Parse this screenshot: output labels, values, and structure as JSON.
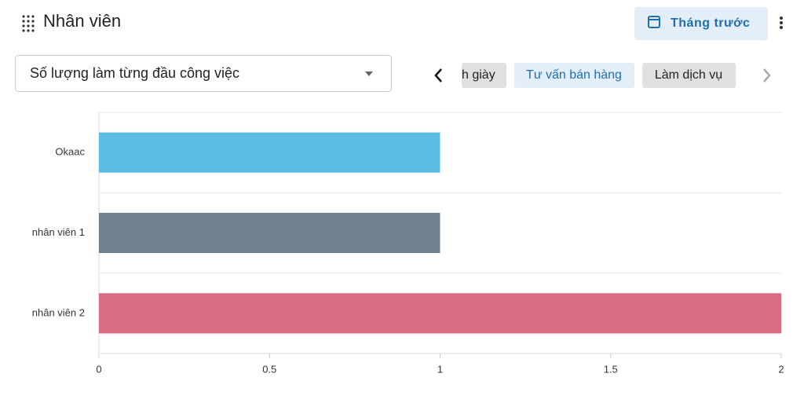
{
  "header": {
    "title": "Nhân viên",
    "button": "Tháng trước"
  },
  "selector": {
    "label": "Số lượng làm từng đầu công việc"
  },
  "tabs": [
    "h giày",
    "Tư vấn bán hàng",
    "Làm dịch vụ"
  ],
  "chart_data": {
    "type": "hbar",
    "categories": [
      "Okaac",
      "nhân viên 1",
      "nhân viên 2"
    ],
    "values": [
      1,
      1,
      2
    ],
    "colors": [
      "#5bbce4",
      "#6e818d",
      "#d96b82"
    ],
    "xlim": [
      0,
      2
    ],
    "xticks": [
      0,
      0.5,
      1,
      1.5,
      2
    ],
    "grid": true
  }
}
